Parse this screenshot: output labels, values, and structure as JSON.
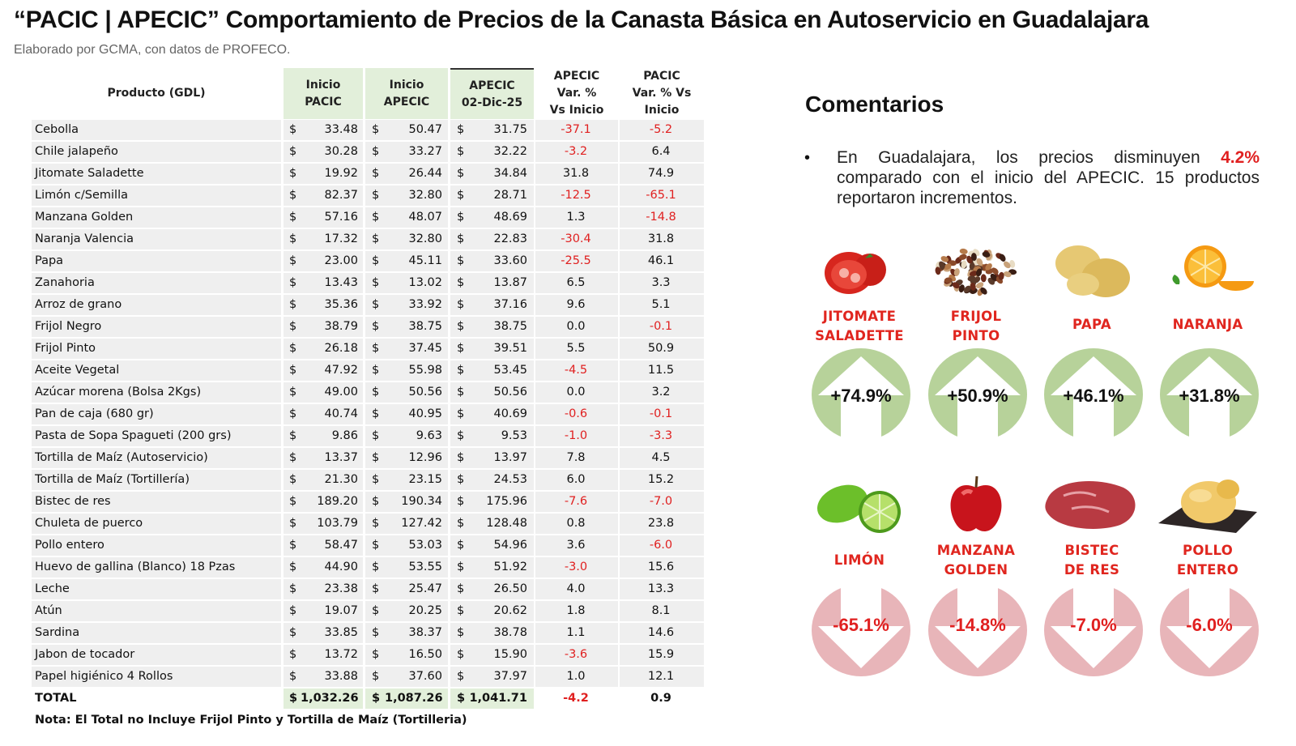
{
  "header": {
    "title": "“PACIC | APECIC” Comportamiento de Precios de la Canasta Básica en Autoservicio en Guadalajara",
    "subtitle": "Elaborado por GCMA, con datos de PROFECO."
  },
  "table": {
    "columns": {
      "product": "Producto (GDL)",
      "inicio_pacic": [
        "Inicio",
        "PACIC"
      ],
      "inicio_apecic": [
        "Inicio",
        "APECIC"
      ],
      "apecic_date": [
        "APECIC",
        "02-Dic-25"
      ],
      "apecic_var": [
        "APECIC",
        "Var. %",
        "Vs  Inicio"
      ],
      "pacic_var": [
        "PACIC",
        "Var. % Vs",
        "Inicio"
      ]
    },
    "currency": "$",
    "rows": [
      {
        "product": "Cebolla",
        "inicio_pacic": "33.48",
        "inicio_apecic": "50.47",
        "apecic": "31.75",
        "apecic_var": "-37.1",
        "pacic_var": "-5.2"
      },
      {
        "product": "Chile jalapeño",
        "inicio_pacic": "30.28",
        "inicio_apecic": "33.27",
        "apecic": "32.22",
        "apecic_var": "-3.2",
        "pacic_var": "6.4"
      },
      {
        "product": "Jitomate Saladette",
        "inicio_pacic": "19.92",
        "inicio_apecic": "26.44",
        "apecic": "34.84",
        "apecic_var": "31.8",
        "pacic_var": "74.9"
      },
      {
        "product": "Limón c/Semilla",
        "inicio_pacic": "82.37",
        "inicio_apecic": "32.80",
        "apecic": "28.71",
        "apecic_var": "-12.5",
        "pacic_var": "-65.1"
      },
      {
        "product": "Manzana Golden",
        "inicio_pacic": "57.16",
        "inicio_apecic": "48.07",
        "apecic": "48.69",
        "apecic_var": "1.3",
        "pacic_var": "-14.8"
      },
      {
        "product": "Naranja Valencia",
        "inicio_pacic": "17.32",
        "inicio_apecic": "32.80",
        "apecic": "22.83",
        "apecic_var": "-30.4",
        "pacic_var": "31.8"
      },
      {
        "product": "Papa",
        "inicio_pacic": "23.00",
        "inicio_apecic": "45.11",
        "apecic": "33.60",
        "apecic_var": "-25.5",
        "pacic_var": "46.1"
      },
      {
        "product": "Zanahoria",
        "inicio_pacic": "13.43",
        "inicio_apecic": "13.02",
        "apecic": "13.87",
        "apecic_var": "6.5",
        "pacic_var": "3.3"
      },
      {
        "product": "Arroz de grano",
        "inicio_pacic": "35.36",
        "inicio_apecic": "33.92",
        "apecic": "37.16",
        "apecic_var": "9.6",
        "pacic_var": "5.1"
      },
      {
        "product": "Frijol Negro",
        "inicio_pacic": "38.79",
        "inicio_apecic": "38.75",
        "apecic": "38.75",
        "apecic_var": "0.0",
        "pacic_var": "-0.1"
      },
      {
        "product": "Frijol Pinto",
        "inicio_pacic": "26.18",
        "inicio_apecic": "37.45",
        "apecic": "39.51",
        "apecic_var": "5.5",
        "pacic_var": "50.9"
      },
      {
        "product": "Aceite Vegetal",
        "inicio_pacic": "47.92",
        "inicio_apecic": "55.98",
        "apecic": "53.45",
        "apecic_var": "-4.5",
        "pacic_var": "11.5"
      },
      {
        "product": "Azúcar morena (Bolsa 2Kgs)",
        "inicio_pacic": "49.00",
        "inicio_apecic": "50.56",
        "apecic": "50.56",
        "apecic_var": "0.0",
        "pacic_var": "3.2"
      },
      {
        "product": "Pan de caja (680 gr)",
        "inicio_pacic": "40.74",
        "inicio_apecic": "40.95",
        "apecic": "40.69",
        "apecic_var": "-0.6",
        "pacic_var": "-0.1"
      },
      {
        "product": "Pasta de Sopa Spagueti (200 grs)",
        "inicio_pacic": "9.86",
        "inicio_apecic": "9.63",
        "apecic": "9.53",
        "apecic_var": "-1.0",
        "pacic_var": "-3.3"
      },
      {
        "product": "Tortilla de Maíz (Autoservicio)",
        "inicio_pacic": "13.37",
        "inicio_apecic": "12.96",
        "apecic": "13.97",
        "apecic_var": "7.8",
        "pacic_var": "4.5"
      },
      {
        "product": "Tortilla de Maíz (Tortillería)",
        "inicio_pacic": "21.30",
        "inicio_apecic": "23.15",
        "apecic": "24.53",
        "apecic_var": "6.0",
        "pacic_var": "15.2"
      },
      {
        "product": "Bistec de res",
        "inicio_pacic": "189.20",
        "inicio_apecic": "190.34",
        "apecic": "175.96",
        "apecic_var": "-7.6",
        "pacic_var": "-7.0"
      },
      {
        "product": "Chuleta de puerco",
        "inicio_pacic": "103.79",
        "inicio_apecic": "127.42",
        "apecic": "128.48",
        "apecic_var": "0.8",
        "pacic_var": "23.8"
      },
      {
        "product": "Pollo entero",
        "inicio_pacic": "58.47",
        "inicio_apecic": "53.03",
        "apecic": "54.96",
        "apecic_var": "3.6",
        "pacic_var": "-6.0"
      },
      {
        "product": "Huevo de gallina (Blanco) 18 Pzas",
        "inicio_pacic": "44.90",
        "inicio_apecic": "53.55",
        "apecic": "51.92",
        "apecic_var": "-3.0",
        "pacic_var": "15.6"
      },
      {
        "product": "Leche",
        "inicio_pacic": "23.38",
        "inicio_apecic": "25.47",
        "apecic": "26.50",
        "apecic_var": "4.0",
        "pacic_var": "13.3"
      },
      {
        "product": "Atún",
        "inicio_pacic": "19.07",
        "inicio_apecic": "20.25",
        "apecic": "20.62",
        "apecic_var": "1.8",
        "pacic_var": "8.1"
      },
      {
        "product": "Sardina",
        "inicio_pacic": "33.85",
        "inicio_apecic": "38.37",
        "apecic": "38.78",
        "apecic_var": "1.1",
        "pacic_var": "14.6"
      },
      {
        "product": "Jabon de tocador",
        "inicio_pacic": "13.72",
        "inicio_apecic": "16.50",
        "apecic": "15.90",
        "apecic_var": "-3.6",
        "pacic_var": "15.9"
      },
      {
        "product": "Papel higiénico 4 Rollos",
        "inicio_pacic": "33.88",
        "inicio_apecic": "37.60",
        "apecic": "37.97",
        "apecic_var": "1.0",
        "pacic_var": "12.1"
      }
    ],
    "total": {
      "product": "TOTAL",
      "inicio_pacic": "1,032.26",
      "inicio_apecic": "1,087.26",
      "apecic": "1,041.71",
      "apecic_var": "-4.2",
      "pacic_var": "0.9"
    },
    "note": "Nota: El Total no Incluye Frijol Pinto y Tortilla de Maíz (Tortilleria)"
  },
  "comments": {
    "title": "Comentarios",
    "bullet": "•",
    "text_before": "En Guadalajara, los precios disminuyen ",
    "highlight": "4.2%",
    "text_after": " comparado con el inicio del APECIC. 15 productos reportaron incrementos."
  },
  "cards": [
    {
      "name": [
        "JITOMATE",
        "SALADETTE"
      ],
      "value": "+74.9%",
      "direction": "up",
      "icon": "tomato-icon"
    },
    {
      "name": [
        "FRIJOL",
        "PINTO"
      ],
      "value": "+50.9%",
      "direction": "up",
      "icon": "beans-icon"
    },
    {
      "name": [
        "PAPA"
      ],
      "value": "+46.1%",
      "direction": "up",
      "icon": "potato-icon"
    },
    {
      "name": [
        "NARANJA"
      ],
      "value": "+31.8%",
      "direction": "up",
      "icon": "orange-icon"
    },
    {
      "name": [
        "LIMÓN"
      ],
      "value": "-65.1%",
      "direction": "down",
      "icon": "lime-icon"
    },
    {
      "name": [
        "MANZANA",
        "GOLDEN"
      ],
      "value": "-14.8%",
      "direction": "down",
      "icon": "apple-icon"
    },
    {
      "name": [
        "BISTEC",
        "DE RES"
      ],
      "value": "-7.0%",
      "direction": "down",
      "icon": "steak-icon"
    },
    {
      "name": [
        "POLLO",
        "ENTERO"
      ],
      "value": "-6.0%",
      "direction": "down",
      "icon": "chicken-icon"
    }
  ],
  "colors": {
    "negative": "#e02020",
    "up_circle": "#b7d29a",
    "down_circle": "#e8b5b9",
    "header_green": "#e2efda",
    "label_red": "#e0261f"
  }
}
